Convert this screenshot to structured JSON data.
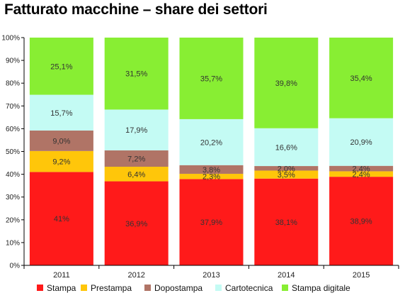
{
  "chart_data": {
    "type": "bar",
    "stacked": true,
    "title": "Fatturato macchine – share dei settori",
    "categories": [
      "2011",
      "2012",
      "2013",
      "2014",
      "2015"
    ],
    "y_ticks": [
      "0%",
      "10%",
      "20%",
      "30%",
      "40%",
      "50%",
      "60%",
      "70%",
      "80%",
      "90%",
      "100%"
    ],
    "ylim": [
      0,
      100
    ],
    "grid": false,
    "legend_position": "bottom",
    "series": [
      {
        "name": "Stampa",
        "color": "#ff1a1a",
        "values": [
          41,
          36.9,
          37.9,
          38.1,
          38.9
        ],
        "labels": [
          "41%",
          "36,9%",
          "37,9%",
          "38,1%",
          "38,9%"
        ]
      },
      {
        "name": "Prestampa",
        "color": "#ffc60a",
        "values": [
          9.2,
          6.4,
          2.3,
          3.5,
          2.4
        ],
        "labels": [
          "9,2%",
          "6,4%",
          "2,3%",
          "3,5%",
          "2,4%"
        ]
      },
      {
        "name": "Dopostampa",
        "color": "#b07466",
        "values": [
          9.0,
          7.2,
          3.8,
          2.0,
          2.4
        ],
        "labels": [
          "9,0%",
          "7,2%",
          "3,8%",
          "2,0%",
          "2,4%"
        ]
      },
      {
        "name": "Cartotecnica",
        "color": "#c4fbf4",
        "values": [
          15.7,
          17.9,
          20.2,
          16.6,
          20.9
        ],
        "labels": [
          "15,7%",
          "17,9%",
          "20,2%",
          "16,6%",
          "20,9%"
        ]
      },
      {
        "name": "Stampa digitale",
        "color": "#88ee33",
        "values": [
          25.1,
          31.5,
          35.7,
          39.8,
          35.4
        ],
        "labels": [
          "25,1%",
          "31,5%",
          "35,7%",
          "39,8%",
          "35,4%"
        ]
      }
    ]
  }
}
